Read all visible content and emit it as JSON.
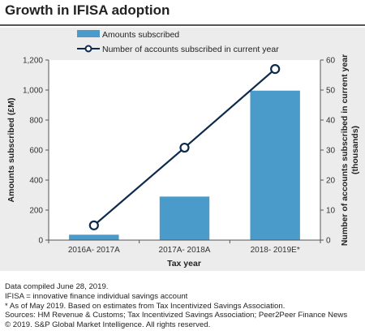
{
  "title": "Growth in IFISA adoption",
  "colors": {
    "bar": "#4a9bc9",
    "line": "#0d2a4c",
    "background": "#ececec",
    "plot": "#ffffff"
  },
  "chart_data": {
    "type": "bar+line",
    "categories": [
      "2016A- 2017A",
      "2017A- 2018A",
      "2018- 2019E*"
    ],
    "xlabel": "Tax year",
    "ylabel_left": "Amounts subscribed (£M)",
    "ylabel_right": "Number of accounts subscribed in current year (thousands)",
    "ylim_left": [
      0,
      1200
    ],
    "ylim_right": [
      0,
      60
    ],
    "yticks_left": [
      "0",
      "200",
      "400",
      "600",
      "800",
      "1,000",
      "1,200"
    ],
    "yticks_right": [
      "0",
      "10",
      "20",
      "30",
      "40",
      "50",
      "60"
    ],
    "grid": false,
    "legend_position": "top",
    "series": [
      {
        "name": "Amounts subscribed",
        "type": "bar",
        "axis": "left",
        "values": [
          36,
          290,
          996
        ]
      },
      {
        "name": "Number of accounts subscribed in current year",
        "type": "line",
        "axis": "right",
        "values": [
          4.9,
          30.8,
          57
        ]
      }
    ]
  },
  "notes": [
    "Data compiled June 28, 2019.",
    "IFISA = innovative finance individual savings account",
    "* As of May 2019. Based on estimates from Tax Incentivized Savings Association.",
    "Sources: HM Revenue & Customs; Tax Incentivized Savings Association; Peer2Peer Finance News",
    "© 2019. S&P Global Market Intelligence. All rights reserved."
  ]
}
